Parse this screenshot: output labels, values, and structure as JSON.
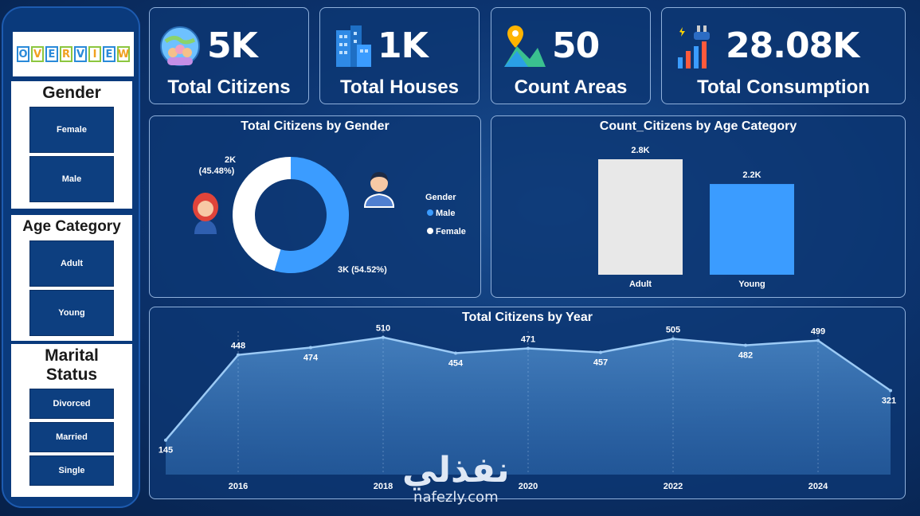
{
  "sidebar": {
    "logo_letters": [
      "O",
      "V",
      "E",
      "R",
      "V",
      "I",
      "E",
      "W"
    ],
    "gender": {
      "title": "Gender",
      "items": [
        "Female",
        "Male"
      ]
    },
    "age": {
      "title": "Age Category",
      "items": [
        "Adult",
        "Young"
      ]
    },
    "marital": {
      "title_line1": "Marital",
      "title_line2": "Status",
      "items": [
        "Divorced",
        "Married",
        "Single"
      ]
    }
  },
  "kpis": [
    {
      "value": "5K",
      "label": "Total Citizens",
      "icon": "globe-people-icon"
    },
    {
      "value": "1K",
      "label": "Total Houses",
      "icon": "buildings-icon"
    },
    {
      "value": "50",
      "label": "Count Areas",
      "icon": "map-pin-icon"
    },
    {
      "value": "28.08K",
      "label": "Total Consumption",
      "icon": "energy-plug-icon"
    }
  ],
  "colors": {
    "male": "#3b9cff",
    "female": "#ffffff",
    "adult": "#e8e8e8",
    "young": "#3b9cff",
    "line": "#9ccaf5"
  },
  "watermark": {
    "arabic": "نفذلي",
    "latin": "nafezly.com"
  },
  "chart_data": [
    {
      "type": "pie",
      "title": "Total Citizens by Gender",
      "legend_title": "Gender",
      "legend_position": "right",
      "slices": [
        {
          "name": "Male",
          "value": 2726,
          "label": "3K (54.52%)"
        },
        {
          "name": "Female",
          "value": 2274,
          "label": "2K (45.48%)"
        }
      ],
      "label_female_line1": "2K",
      "label_female_line2": "(45.48%)"
    },
    {
      "type": "bar",
      "title": "Count_Citizens by Age Category",
      "categories": [
        "Adult",
        "Young"
      ],
      "values": [
        2800,
        2200
      ],
      "data_labels": [
        "2.8K",
        "2.2K"
      ],
      "ylim": [
        0,
        2800
      ]
    },
    {
      "type": "area",
      "title": "Total Citizens by Year",
      "x": [
        2015,
        2016,
        2017,
        2018,
        2019,
        2020,
        2021,
        2022,
        2023,
        2024,
        2025
      ],
      "values": [
        145,
        448,
        474,
        510,
        454,
        471,
        457,
        505,
        482,
        499,
        321
      ],
      "x_tick_labels": [
        "2016",
        "2018",
        "2020",
        "2022",
        "2024"
      ],
      "ylim": [
        0,
        560
      ]
    }
  ]
}
